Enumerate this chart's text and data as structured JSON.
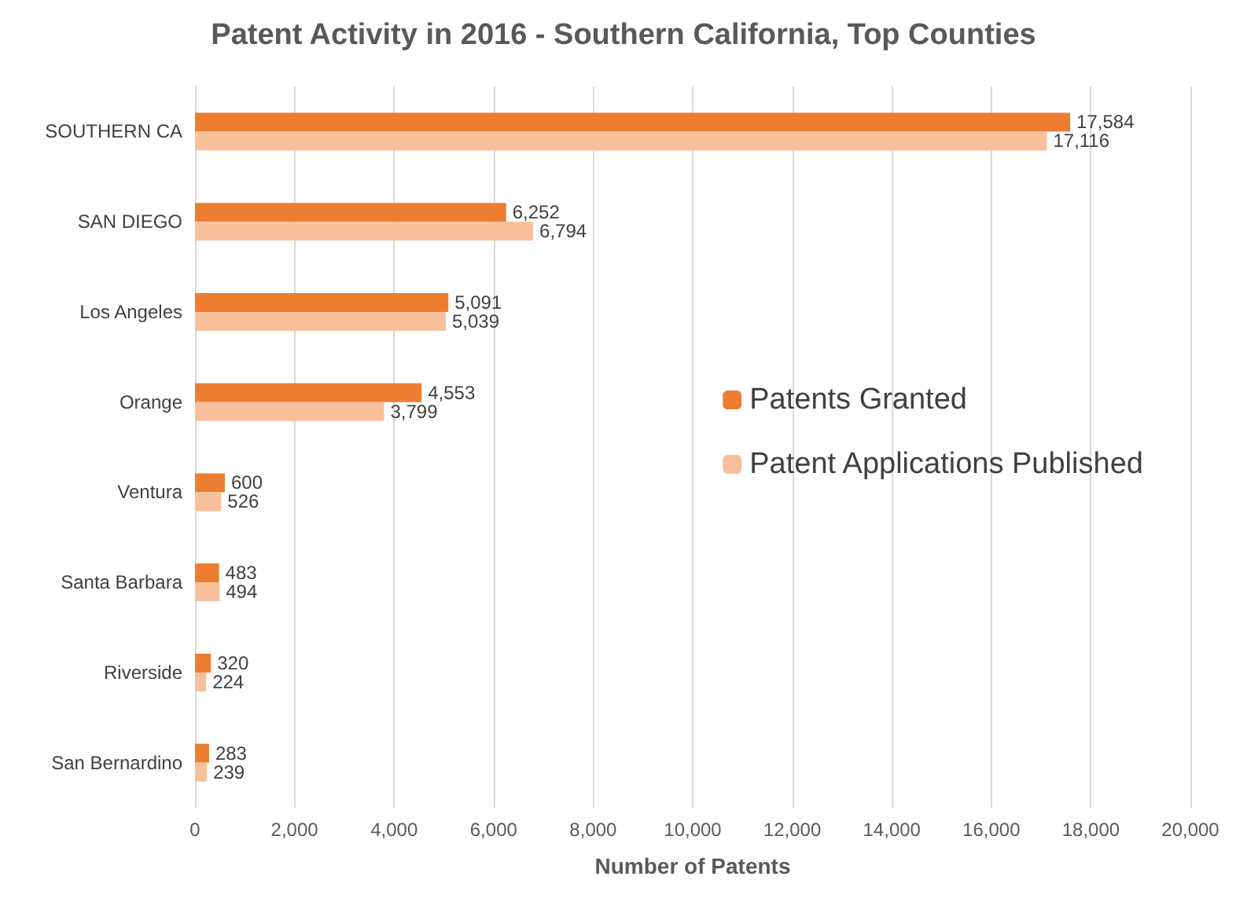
{
  "chart_data": {
    "type": "bar",
    "orientation": "horizontal",
    "title": "Patent Activity in 2016 - Southern California, Top Counties",
    "xlabel": "Number of Patents",
    "categories": [
      "SOUTHERN CA",
      "SAN DIEGO",
      "Los Angeles",
      "Orange",
      "Ventura",
      "Santa Barbara",
      "Riverside",
      "San Bernardino"
    ],
    "series": [
      {
        "name": "Patents Granted",
        "color": "#ed7d31",
        "values": [
          17584,
          6252,
          5091,
          4553,
          600,
          483,
          320,
          283
        ],
        "value_labels": [
          "17,584",
          "6,252",
          "5,091",
          "4,553",
          "600",
          "483",
          "320",
          "283"
        ]
      },
      {
        "name": "Patent Applications Published",
        "color": "#f8c09a",
        "values": [
          17116,
          6794,
          5039,
          3799,
          526,
          494,
          224,
          239
        ],
        "value_labels": [
          "17,116",
          "6,794",
          "5,039",
          "3,799",
          "526",
          "494",
          "224",
          "239"
        ]
      }
    ],
    "xlim": [
      0,
      20000
    ],
    "xticks": [
      0,
      {
        "value": 2000,
        "label": "2,000"
      },
      {
        "value": 4000,
        "label": "4,000"
      },
      {
        "value": 6000,
        "label": "6,000"
      },
      {
        "value": 8000,
        "label": "8,000"
      },
      {
        "value": 10000,
        "label": "10,000"
      },
      {
        "value": 12000,
        "label": "12,000"
      },
      {
        "value": 14000,
        "label": "14,000"
      },
      {
        "value": 16000,
        "label": "16,000"
      },
      {
        "value": 18000,
        "label": "18,000"
      },
      {
        "value": 20000,
        "label": "20,000"
      }
    ],
    "grid": "x",
    "legend": "right"
  }
}
